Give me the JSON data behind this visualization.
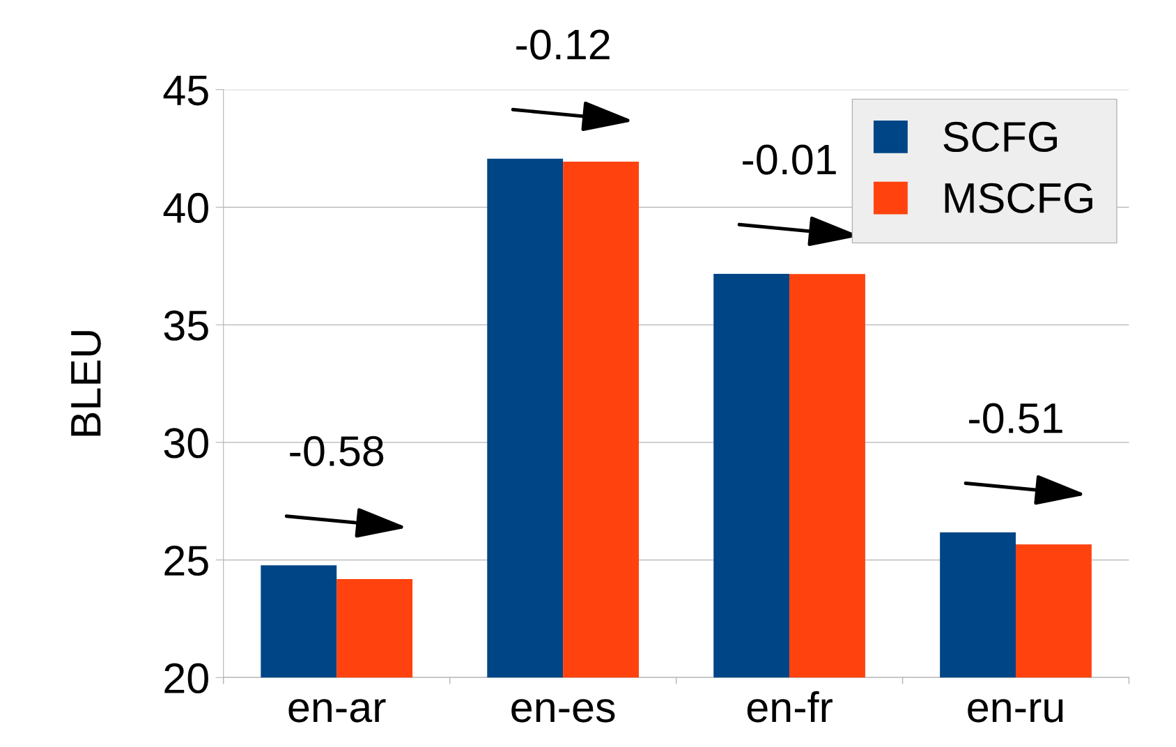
{
  "chart_data": {
    "type": "bar",
    "ylabel": "BLEU",
    "categories": [
      "en-ar",
      "en-es",
      "en-fr",
      "en-ru"
    ],
    "series": [
      {
        "name": "SCFG",
        "color": "#004586",
        "values": [
          24.77,
          42.06,
          37.17,
          26.17
        ]
      },
      {
        "name": "MSCFG",
        "color": "#ff420e",
        "values": [
          24.19,
          41.94,
          37.16,
          25.66
        ]
      }
    ],
    "ylim": [
      20,
      45
    ],
    "yticks": [
      20,
      25,
      30,
      35,
      40,
      45
    ],
    "grid": "y",
    "legend": "top right",
    "annotations": [
      "-0.58",
      "-0.12",
      "-0.01",
      "-0.51"
    ]
  }
}
